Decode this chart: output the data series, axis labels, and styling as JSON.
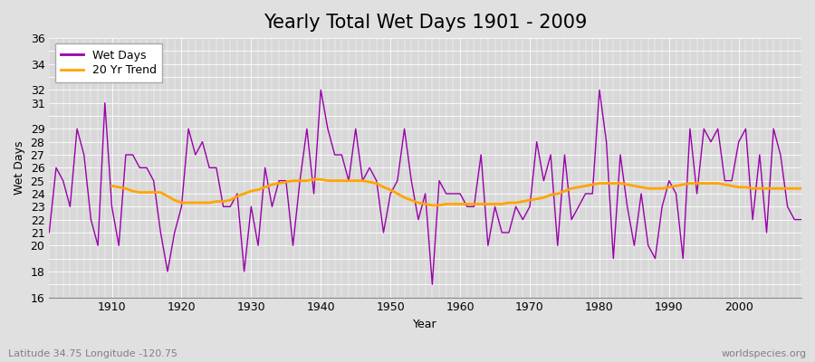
{
  "title": "Yearly Total Wet Days 1901 - 2009",
  "xlabel": "Year",
  "ylabel": "Wet Days",
  "subtitle": "Latitude 34.75 Longitude -120.75",
  "watermark": "worldspecies.org",
  "years": [
    1901,
    1902,
    1903,
    1904,
    1905,
    1906,
    1907,
    1908,
    1909,
    1910,
    1911,
    1912,
    1913,
    1914,
    1915,
    1916,
    1917,
    1918,
    1919,
    1920,
    1921,
    1922,
    1923,
    1924,
    1925,
    1926,
    1927,
    1928,
    1929,
    1930,
    1931,
    1932,
    1933,
    1934,
    1935,
    1936,
    1937,
    1938,
    1939,
    1940,
    1941,
    1942,
    1943,
    1944,
    1945,
    1946,
    1947,
    1948,
    1949,
    1950,
    1951,
    1952,
    1953,
    1954,
    1955,
    1956,
    1957,
    1958,
    1959,
    1960,
    1961,
    1962,
    1963,
    1964,
    1965,
    1966,
    1967,
    1968,
    1969,
    1970,
    1971,
    1972,
    1973,
    1974,
    1975,
    1976,
    1977,
    1978,
    1979,
    1980,
    1981,
    1982,
    1983,
    1984,
    1985,
    1986,
    1987,
    1988,
    1989,
    1990,
    1991,
    1992,
    1993,
    1994,
    1995,
    1996,
    1997,
    1998,
    1999,
    2000,
    2001,
    2002,
    2003,
    2004,
    2005,
    2006,
    2007,
    2008,
    2009
  ],
  "wet_days": [
    21,
    26,
    25,
    23,
    29,
    27,
    22,
    20,
    31,
    23,
    20,
    27,
    27,
    26,
    26,
    25,
    21,
    18,
    21,
    23,
    29,
    27,
    28,
    26,
    26,
    23,
    23,
    24,
    18,
    23,
    20,
    26,
    23,
    25,
    25,
    20,
    25,
    29,
    24,
    32,
    29,
    27,
    27,
    25,
    29,
    25,
    26,
    25,
    21,
    24,
    25,
    29,
    25,
    22,
    24,
    17,
    25,
    24,
    24,
    24,
    23,
    23,
    27,
    20,
    23,
    21,
    21,
    23,
    22,
    23,
    28,
    25,
    27,
    20,
    27,
    22,
    23,
    24,
    24,
    32,
    28,
    19,
    27,
    23,
    20,
    24,
    20,
    19,
    23,
    25,
    24,
    19,
    29,
    24,
    29,
    28,
    29,
    25,
    25,
    28,
    29,
    22,
    27,
    21,
    29,
    27,
    23,
    22,
    22
  ],
  "trend_years": [
    1910,
    1911,
    1912,
    1913,
    1914,
    1915,
    1916,
    1917,
    1918,
    1919,
    1920,
    1921,
    1922,
    1923,
    1924,
    1925,
    1926,
    1927,
    1928,
    1929,
    1930,
    1931,
    1932,
    1933,
    1934,
    1935,
    1936,
    1937,
    1938,
    1939,
    1940,
    1941,
    1942,
    1943,
    1944,
    1945,
    1946,
    1947,
    1948,
    1949,
    1950,
    1951,
    1952,
    1953,
    1954,
    1955,
    1956,
    1957,
    1958,
    1959,
    1960,
    1961,
    1962,
    1963,
    1964,
    1965,
    1966,
    1967,
    1968,
    1969,
    1970,
    1971,
    1972,
    1973,
    1974,
    1975,
    1976,
    1977,
    1978,
    1979,
    1980,
    1981,
    1982,
    1983,
    1984,
    1985,
    1986,
    1987,
    1988,
    1989,
    1990,
    1991,
    1992,
    1993,
    1994,
    1995,
    1996,
    1997,
    1998,
    1999,
    2000,
    2001,
    2002,
    2003,
    2004,
    2005,
    2006,
    2007,
    2008,
    2009
  ],
  "trend_values": [
    24.6,
    24.5,
    24.4,
    24.2,
    24.1,
    24.1,
    24.1,
    24.1,
    23.8,
    23.5,
    23.3,
    23.3,
    23.3,
    23.3,
    23.3,
    23.4,
    23.4,
    23.5,
    23.8,
    24.0,
    24.2,
    24.3,
    24.5,
    24.7,
    24.8,
    24.9,
    25.0,
    25.0,
    25.0,
    25.1,
    25.1,
    25.0,
    25.0,
    25.0,
    25.0,
    25.0,
    25.0,
    24.9,
    24.8,
    24.5,
    24.3,
    24.0,
    23.7,
    23.5,
    23.3,
    23.2,
    23.1,
    23.1,
    23.2,
    23.2,
    23.2,
    23.2,
    23.2,
    23.2,
    23.2,
    23.2,
    23.2,
    23.3,
    23.3,
    23.4,
    23.5,
    23.6,
    23.7,
    23.9,
    24.0,
    24.2,
    24.4,
    24.5,
    24.6,
    24.7,
    24.8,
    24.8,
    24.8,
    24.8,
    24.7,
    24.6,
    24.5,
    24.4,
    24.4,
    24.4,
    24.5,
    24.6,
    24.7,
    24.8,
    24.8,
    24.8,
    24.8,
    24.8,
    24.7,
    24.6,
    24.5,
    24.5,
    24.4,
    24.4,
    24.4,
    24.4,
    24.4,
    24.4,
    24.4,
    24.4
  ],
  "wet_days_color": "#9900aa",
  "trend_color": "#ffa500",
  "bg_color": "#e0e0e0",
  "plot_bg_color": "#d8d8d8",
  "ylim": [
    16,
    36
  ],
  "xlim": [
    1901,
    2009
  ],
  "title_fontsize": 15,
  "axis_fontsize": 9,
  "legend_fontsize": 9
}
